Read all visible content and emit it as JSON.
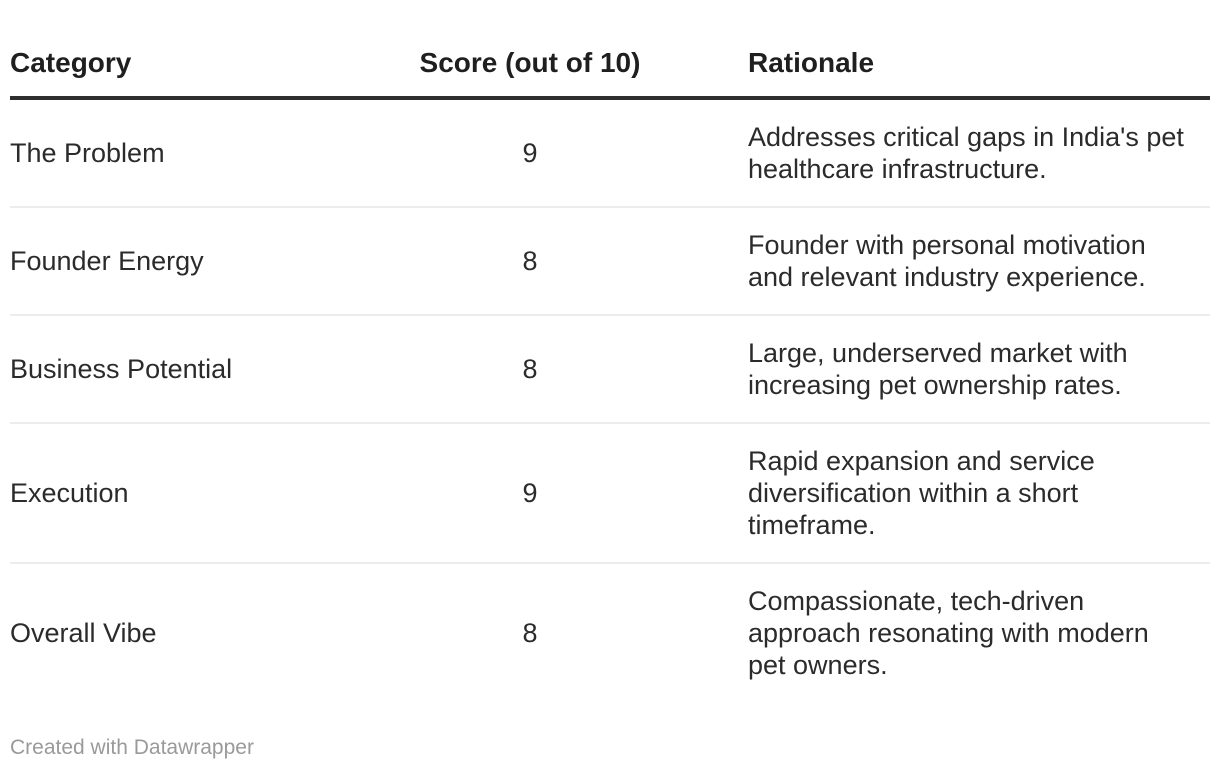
{
  "chart_data": {
    "type": "table",
    "columns": [
      {
        "label": "Category",
        "align": "left"
      },
      {
        "label": "Score (out of 10)",
        "align": "center"
      },
      {
        "label": "Rationale",
        "align": "left"
      }
    ],
    "rows": [
      {
        "category": "The Problem",
        "score": 9,
        "rationale": "Addresses critical gaps in India's pet\nhealthcare infrastructure."
      },
      {
        "category": "Founder Energy",
        "score": 8,
        "rationale": "Founder with personal motivation\nand relevant industry experience."
      },
      {
        "category": "Business Potential",
        "score": 8,
        "rationale": "Large, underserved market with\nincreasing pet ownership rates."
      },
      {
        "category": "Execution",
        "score": 9,
        "rationale": "Rapid expansion and service\ndiversification within a short\ntimeframe."
      },
      {
        "category": "Overall Vibe",
        "score": 8,
        "rationale": "Compassionate, tech-driven\napproach resonating with modern\npet owners."
      }
    ]
  },
  "footer": {
    "credit": "Created with Datawrapper"
  },
  "colors": {
    "background": "#ffffff",
    "header_text": "#1f1f1f",
    "body_text": "#2b2b2b",
    "header_rule": "#2e2e2e",
    "row_divider": "#ececec",
    "footer_text": "#9a9a9a"
  }
}
